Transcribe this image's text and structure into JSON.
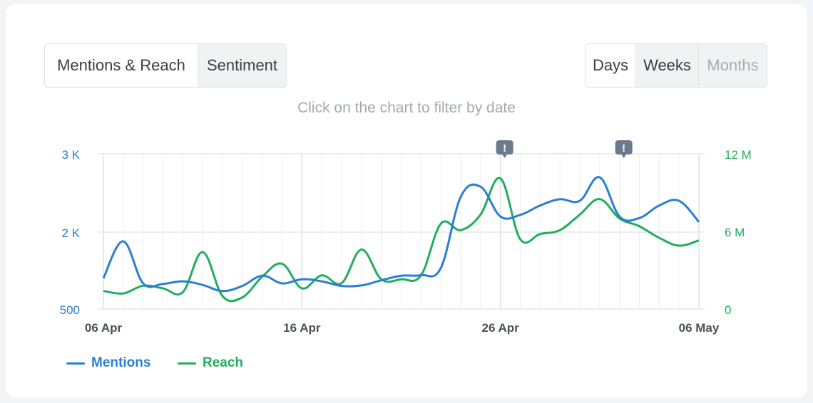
{
  "tabs": {
    "mentions_reach": "Mentions & Reach",
    "sentiment": "Sentiment"
  },
  "period": {
    "days": "Days",
    "weeks": "Weeks",
    "months": "Months"
  },
  "hint": "Click on the chart to filter by date",
  "colors": {
    "mentions": "#2a7fd4",
    "reach": "#22ad5c",
    "grid": "#e3e5e9",
    "alert": "#6b7a8c"
  },
  "chart_data": {
    "type": "line",
    "x": [
      "06 Apr",
      "07 Apr",
      "08 Apr",
      "09 Apr",
      "10 Apr",
      "11 Apr",
      "12 Apr",
      "13 Apr",
      "14 Apr",
      "15 Apr",
      "16 Apr",
      "17 Apr",
      "18 Apr",
      "19 Apr",
      "20 Apr",
      "21 Apr",
      "22 Apr",
      "23 Apr",
      "24 Apr",
      "25 Apr",
      "26 Apr",
      "27 Apr",
      "28 Apr",
      "29 Apr",
      "30 Apr",
      "01 May",
      "02 May",
      "03 May",
      "04 May",
      "05 May",
      "06 May"
    ],
    "x_tick_labels": [
      "06 Apr",
      "16 Apr",
      "26 Apr",
      "06 May"
    ],
    "series": [
      {
        "name": "Mentions",
        "axis": "left",
        "values": [
          1100,
          1820,
          1000,
          990,
          1040,
          970,
          850,
          950,
          1150,
          1000,
          1080,
          1040,
          950,
          960,
          1060,
          1150,
          1160,
          1300,
          2450,
          2580,
          2200,
          2220,
          2340,
          2420,
          2400,
          2700,
          2200,
          2180,
          2340,
          2400,
          2130
        ]
      },
      {
        "name": "Reach",
        "axis": "left-scaled",
        "values": [
          1.4,
          1.2,
          1.8,
          1.6,
          1.3,
          4.4,
          1.0,
          0.9,
          2.5,
          3.5,
          1.6,
          2.6,
          2.0,
          4.6,
          2.3,
          2.3,
          2.6,
          6.6,
          6.1,
          7.3,
          10.1,
          5.4,
          5.8,
          6.1,
          7.3,
          8.5,
          7.0,
          6.4,
          5.5,
          4.9,
          5.3
        ]
      }
    ],
    "y_left": {
      "ticks_labels": [
        "500",
        "2 K",
        "3 K"
      ],
      "ticks": [
        500,
        2000,
        3000
      ],
      "ylim": [
        500,
        3000
      ]
    },
    "y_right": {
      "ticks_labels": [
        "0",
        "6 M",
        "12 M"
      ],
      "ticks": [
        0,
        6,
        12
      ],
      "ylim": [
        0,
        12
      ],
      "unit": "M"
    },
    "alerts": [
      "26 Apr",
      "02 May"
    ],
    "alert_glyph": "!",
    "grid": true,
    "legend_position": "bottom-left"
  }
}
